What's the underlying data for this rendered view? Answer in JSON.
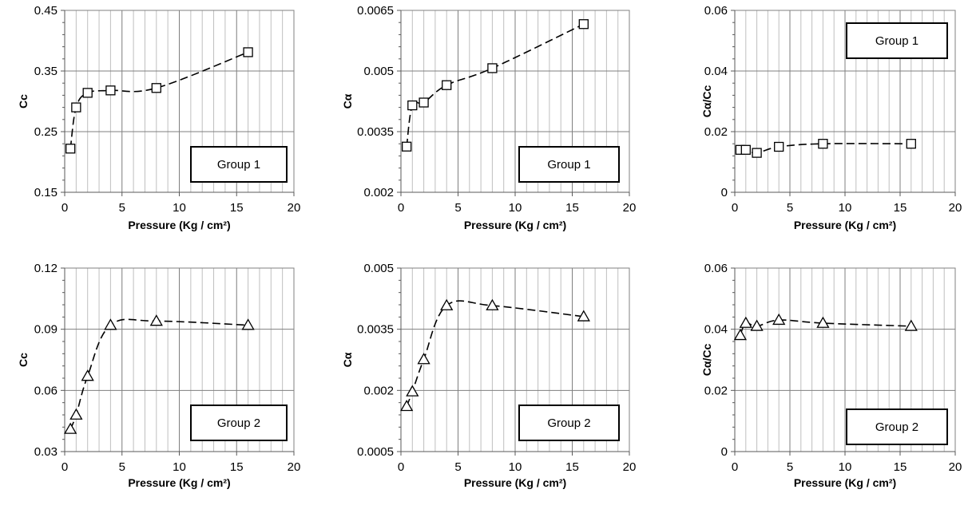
{
  "chart_data": [
    {
      "type": "scatter",
      "xlabel": "Pressure  (Kg / cm²)",
      "ylabel": "Cc",
      "xlim": [
        0,
        20
      ],
      "ylim": [
        0.15,
        0.45
      ],
      "x_ticks": [
        0,
        5,
        10,
        15,
        20
      ],
      "x_tick_labels": [
        "0",
        "5",
        "10",
        "15",
        "20"
      ],
      "y_ticks": [
        0.15,
        0.25,
        0.35,
        0.45
      ],
      "y_tick_labels": [
        "0.15",
        "0.25",
        "0.35",
        "0.45"
      ],
      "legend": "Group 1",
      "legend_position": "bottom-right",
      "marker": "square",
      "grid": true,
      "x": [
        0.5,
        1,
        2,
        4,
        8,
        16
      ],
      "y": [
        0.222,
        0.29,
        0.314,
        0.318,
        0.322,
        0.381
      ]
    },
    {
      "type": "scatter",
      "xlabel": "Pressure  (Kg / cm²)",
      "ylabel": "Cα",
      "xlim": [
        0,
        20
      ],
      "ylim": [
        0.002,
        0.0065
      ],
      "x_ticks": [
        0,
        5,
        10,
        15,
        20
      ],
      "x_tick_labels": [
        "0",
        "5",
        "10",
        "15",
        "20"
      ],
      "y_ticks": [
        0.002,
        0.0035,
        0.005,
        0.0065
      ],
      "y_tick_labels": [
        "0.002",
        "0.0035",
        "0.005",
        "0.0065"
      ],
      "legend": "Group 1",
      "legend_position": "bottom-right",
      "marker": "square",
      "grid": true,
      "x": [
        0.5,
        1,
        2,
        4,
        8,
        16
      ],
      "y": [
        0.00313,
        0.00415,
        0.00422,
        0.00465,
        0.00507,
        0.00616
      ]
    },
    {
      "type": "scatter",
      "xlabel": "Pressure  (Kg / cm²)",
      "ylabel": "Cα/Cc",
      "xlim": [
        0,
        20
      ],
      "ylim": [
        0,
        0.06
      ],
      "x_ticks": [
        0,
        5,
        10,
        15,
        20
      ],
      "x_tick_labels": [
        "0",
        "5",
        "10",
        "15",
        "20"
      ],
      "y_ticks": [
        0,
        0.02,
        0.04,
        0.06
      ],
      "y_tick_labels": [
        "0",
        "0.02",
        "0.04",
        "0.06"
      ],
      "legend": "Group 1",
      "legend_position": "top-right",
      "marker": "square",
      "grid": true,
      "x": [
        0.5,
        1,
        2,
        4,
        8,
        16
      ],
      "y": [
        0.014,
        0.014,
        0.013,
        0.015,
        0.016,
        0.016
      ]
    },
    {
      "type": "scatter",
      "xlabel": "Pressure  (Kg / cm²)",
      "ylabel": "Cc",
      "xlim": [
        0,
        20
      ],
      "ylim": [
        0.03,
        0.12
      ],
      "x_ticks": [
        0,
        5,
        10,
        15,
        20
      ],
      "x_tick_labels": [
        "0",
        "5",
        "10",
        "15",
        "20"
      ],
      "y_ticks": [
        0.03,
        0.06,
        0.09,
        0.12
      ],
      "y_tick_labels": [
        "0.03",
        "0.06",
        "0.09",
        "0.12"
      ],
      "legend": "Group 2",
      "legend_position": "bottom-right",
      "marker": "triangle",
      "grid": true,
      "x": [
        0.5,
        1,
        2,
        4,
        8,
        16
      ],
      "y": [
        0.041,
        0.048,
        0.067,
        0.092,
        0.094,
        0.092
      ]
    },
    {
      "type": "scatter",
      "xlabel": "Pressure  (Kg / cm²)",
      "ylabel": "Cα",
      "xlim": [
        0,
        20
      ],
      "ylim": [
        0.0005,
        0.005
      ],
      "x_ticks": [
        0,
        5,
        10,
        15,
        20
      ],
      "x_tick_labels": [
        "0",
        "5",
        "10",
        "15",
        "20"
      ],
      "y_ticks": [
        0.0005,
        0.002,
        0.0035,
        0.005
      ],
      "y_tick_labels": [
        "0.0005",
        "0.002",
        "0.0035",
        "0.005"
      ],
      "legend": "Group 2",
      "legend_position": "bottom-right",
      "marker": "triangle",
      "grid": true,
      "x": [
        0.5,
        1,
        2,
        4,
        8,
        16
      ],
      "y": [
        0.00161,
        0.00197,
        0.00276,
        0.00408,
        0.00408,
        0.00381
      ]
    },
    {
      "type": "scatter",
      "xlabel": "Pressure  (Kg / cm²)",
      "ylabel": "Cα/Cc",
      "xlim": [
        0,
        20
      ],
      "ylim": [
        0,
        0.06
      ],
      "x_ticks": [
        0,
        5,
        10,
        15,
        20
      ],
      "x_tick_labels": [
        "0",
        "5",
        "10",
        "15",
        "20"
      ],
      "y_ticks": [
        0,
        0.02,
        0.04,
        0.06
      ],
      "y_tick_labels": [
        "0",
        "0.02",
        "0.04",
        "0.06"
      ],
      "legend": "Group 2",
      "legend_position": "bottom-right",
      "marker": "triangle",
      "grid": true,
      "x": [
        0.5,
        1,
        2,
        4,
        8,
        16
      ],
      "y": [
        0.038,
        0.042,
        0.041,
        0.043,
        0.042,
        0.041
      ]
    }
  ]
}
